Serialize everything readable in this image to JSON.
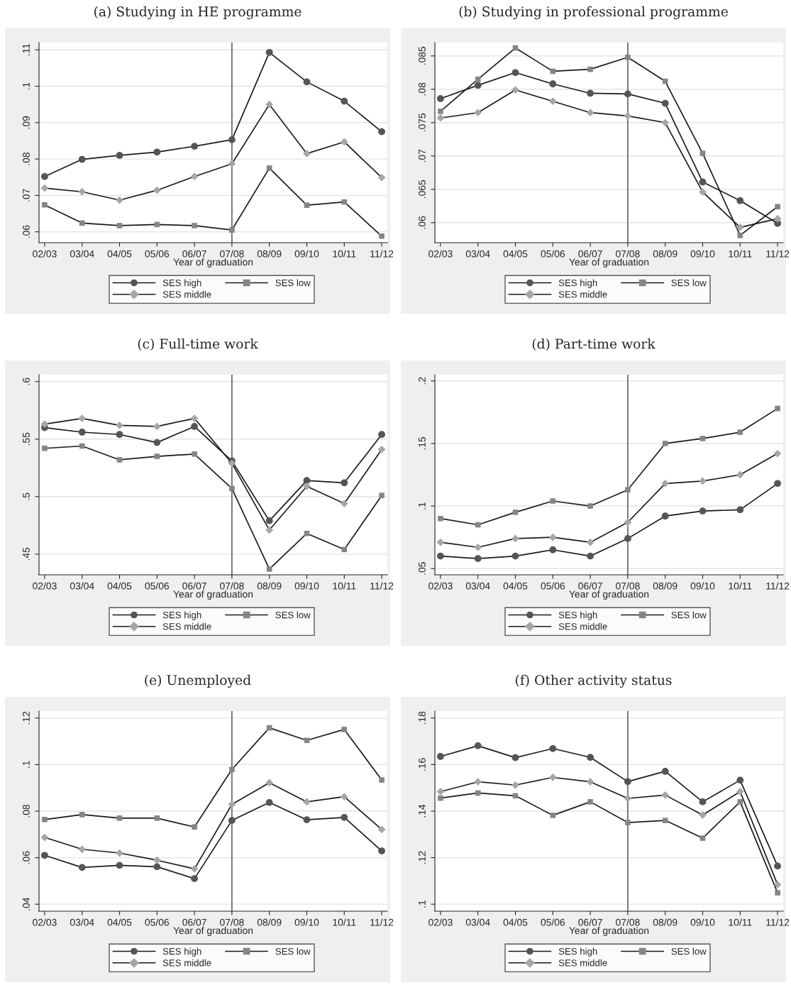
{
  "chart_data": [
    {
      "type": "line",
      "title": "(a) Studying in HE programme",
      "xlabel": "Year of graduation",
      "categories": [
        "02/03",
        "03/04",
        "04/05",
        "05/06",
        "06/07",
        "07/08",
        "08/09",
        "09/10",
        "10/11",
        "11/12"
      ],
      "series": [
        {
          "name": "SES high",
          "color": "#555555",
          "marker": "circle",
          "values": [
            0.0752,
            0.0799,
            0.081,
            0.0819,
            0.0835,
            0.0853,
            0.1093,
            0.1012,
            0.0959,
            0.0875
          ]
        },
        {
          "name": "SES middle",
          "color": "#a6a6a6",
          "marker": "diamond",
          "values": [
            0.072,
            0.071,
            0.0687,
            0.0714,
            0.0752,
            0.0787,
            0.095,
            0.0815,
            0.0847,
            0.0749
          ]
        },
        {
          "name": "SES low",
          "color": "#858585",
          "marker": "square",
          "values": [
            0.0674,
            0.0624,
            0.0617,
            0.062,
            0.0617,
            0.0605,
            0.0775,
            0.0673,
            0.0682,
            0.0588
          ]
        }
      ],
      "ylim": [
        0.057,
        0.112
      ],
      "yticks": [
        {
          "value": 0.06,
          "label": ".06"
        },
        {
          "value": 0.07,
          "label": ".07"
        },
        {
          "value": 0.08,
          "label": ".08"
        },
        {
          "value": 0.09,
          "label": ".09"
        },
        {
          "value": 0.1,
          "label": ".1"
        },
        {
          "value": 0.11,
          "label": ".11"
        }
      ],
      "ref_lines": [
        {
          "axis": "x",
          "value": "07/08",
          "color": "#6e6e6e"
        }
      ],
      "grid": "y",
      "legend": "bottom",
      "line_style": "solid"
    },
    {
      "type": "line",
      "title": "(b) Studying in professional programme",
      "xlabel": "Year of graduation",
      "categories": [
        "02/03",
        "03/04",
        "04/05",
        "05/06",
        "06/07",
        "07/08",
        "08/09",
        "09/10",
        "10/11",
        "11/12"
      ],
      "series": [
        {
          "name": "SES high",
          "color": "#555555",
          "marker": "circle",
          "values": [
            0.0786,
            0.0806,
            0.0825,
            0.0808,
            0.0794,
            0.0793,
            0.0779,
            0.0661,
            0.0633,
            0.0599
          ]
        },
        {
          "name": "SES middle",
          "color": "#a6a6a6",
          "marker": "diamond",
          "values": [
            0.0757,
            0.0765,
            0.0799,
            0.0782,
            0.0765,
            0.076,
            0.075,
            0.0646,
            0.0593,
            0.0606
          ]
        },
        {
          "name": "SES low",
          "color": "#858585",
          "marker": "square",
          "values": [
            0.0767,
            0.0815,
            0.0862,
            0.0827,
            0.083,
            0.0848,
            0.0812,
            0.0704,
            0.0581,
            0.0624
          ]
        }
      ],
      "ylim": [
        0.057,
        0.087
      ],
      "yticks": [
        {
          "value": 0.06,
          "label": ".06"
        },
        {
          "value": 0.065,
          "label": ".065"
        },
        {
          "value": 0.07,
          "label": ".07"
        },
        {
          "value": 0.075,
          "label": ".075"
        },
        {
          "value": 0.08,
          "label": ".08"
        },
        {
          "value": 0.085,
          "label": ".085"
        }
      ],
      "ref_lines": [
        {
          "axis": "x",
          "value": "07/08",
          "color": "#6e6e6e"
        }
      ],
      "grid": "y",
      "legend": "bottom",
      "line_style": "solid"
    },
    {
      "type": "line",
      "title": "(c) Full-time work",
      "xlabel": "Year of graduation",
      "categories": [
        "02/03",
        "03/04",
        "04/05",
        "05/06",
        "06/07",
        "07/08",
        "08/09",
        "09/10",
        "10/11",
        "11/12"
      ],
      "series": [
        {
          "name": "SES high",
          "color": "#555555",
          "marker": "circle",
          "values": [
            0.56,
            0.556,
            0.554,
            0.547,
            0.561,
            0.531,
            0.479,
            0.514,
            0.512,
            0.554
          ]
        },
        {
          "name": "SES middle",
          "color": "#a6a6a6",
          "marker": "diamond",
          "values": [
            0.563,
            0.568,
            0.562,
            0.561,
            0.568,
            0.529,
            0.471,
            0.509,
            0.494,
            0.541
          ]
        },
        {
          "name": "SES low",
          "color": "#858585",
          "marker": "square",
          "values": [
            0.542,
            0.544,
            0.532,
            0.535,
            0.537,
            0.507,
            0.437,
            0.468,
            0.454,
            0.501
          ]
        }
      ],
      "ylim": [
        0.432,
        0.606
      ],
      "yticks": [
        {
          "value": 0.45,
          "label": ".45"
        },
        {
          "value": 0.5,
          "label": ".5"
        },
        {
          "value": 0.55,
          "label": ".55"
        },
        {
          "value": 0.6,
          "label": ".6"
        }
      ],
      "ref_lines": [
        {
          "axis": "x",
          "value": "07/08",
          "color": "#6e6e6e"
        }
      ],
      "grid": "y",
      "legend": "bottom",
      "line_style": "solid"
    },
    {
      "type": "line",
      "title": "(d) Part-time work",
      "xlabel": "Year of graduation",
      "categories": [
        "02/03",
        "03/04",
        "04/05",
        "05/06",
        "06/07",
        "07/08",
        "08/09",
        "09/10",
        "10/11",
        "11/12"
      ],
      "series": [
        {
          "name": "SES high",
          "color": "#555555",
          "marker": "circle",
          "values": [
            0.06,
            0.058,
            0.06,
            0.065,
            0.06,
            0.074,
            0.092,
            0.096,
            0.097,
            0.118
          ]
        },
        {
          "name": "SES middle",
          "color": "#a6a6a6",
          "marker": "diamond",
          "values": [
            0.071,
            0.067,
            0.074,
            0.075,
            0.071,
            0.087,
            0.118,
            0.12,
            0.125,
            0.142
          ]
        },
        {
          "name": "SES low",
          "color": "#858585",
          "marker": "square",
          "values": [
            0.09,
            0.085,
            0.095,
            0.104,
            0.1,
            0.113,
            0.15,
            0.154,
            0.159,
            0.178
          ]
        }
      ],
      "ylim": [
        0.045,
        0.205
      ],
      "yticks": [
        {
          "value": 0.05,
          "label": ".05"
        },
        {
          "value": 0.1,
          "label": ".1"
        },
        {
          "value": 0.15,
          "label": ".15"
        },
        {
          "value": 0.2,
          "label": ".2"
        }
      ],
      "ref_lines": [
        {
          "axis": "x",
          "value": "07/08",
          "color": "#6e6e6e"
        }
      ],
      "grid": "y",
      "legend": "bottom",
      "line_style": "solid"
    },
    {
      "type": "line",
      "title": "(e) Unemployed",
      "xlabel": "Year of graduation",
      "categories": [
        "02/03",
        "03/04",
        "04/05",
        "05/06",
        "06/07",
        "07/08",
        "08/09",
        "09/10",
        "10/11",
        "11/12"
      ],
      "series": [
        {
          "name": "SES high",
          "color": "#555555",
          "marker": "circle",
          "values": [
            0.061,
            0.0558,
            0.0567,
            0.0561,
            0.051,
            0.076,
            0.0837,
            0.0763,
            0.0773,
            0.0629
          ]
        },
        {
          "name": "SES middle",
          "color": "#a6a6a6",
          "marker": "diamond",
          "values": [
            0.0687,
            0.0636,
            0.062,
            0.0589,
            0.0552,
            0.0829,
            0.0922,
            0.084,
            0.0862,
            0.0721
          ]
        },
        {
          "name": "SES low",
          "color": "#858585",
          "marker": "square",
          "values": [
            0.0764,
            0.0785,
            0.077,
            0.077,
            0.0732,
            0.0979,
            0.1158,
            0.1104,
            0.1151,
            0.0934
          ]
        }
      ],
      "ylim": [
        0.037,
        0.123
      ],
      "yticks": [
        {
          "value": 0.04,
          "label": ".04"
        },
        {
          "value": 0.06,
          "label": ".06"
        },
        {
          "value": 0.08,
          "label": ".08"
        },
        {
          "value": 0.1,
          "label": ".1"
        },
        {
          "value": 0.12,
          "label": ".12"
        }
      ],
      "ref_lines": [
        {
          "axis": "x",
          "value": "07/08",
          "color": "#6e6e6e"
        }
      ],
      "grid": "y",
      "legend": "bottom",
      "line_style": "solid"
    },
    {
      "type": "line",
      "title": "(f) Other activity status",
      "xlabel": "Year of graduation",
      "categories": [
        "02/03",
        "03/04",
        "04/05",
        "05/06",
        "06/07",
        "07/08",
        "08/09",
        "09/10",
        "10/11",
        "11/12"
      ],
      "series": [
        {
          "name": "SES high",
          "color": "#555555",
          "marker": "circle",
          "values": [
            0.1635,
            0.1681,
            0.163,
            0.1669,
            0.1631,
            0.1527,
            0.1571,
            0.144,
            0.1533,
            0.1164
          ]
        },
        {
          "name": "SES middle",
          "color": "#a6a6a6",
          "marker": "diamond",
          "values": [
            0.1484,
            0.1526,
            0.1512,
            0.1545,
            0.1526,
            0.1455,
            0.1469,
            0.1383,
            0.1484,
            0.1084
          ]
        },
        {
          "name": "SES low",
          "color": "#858585",
          "marker": "square",
          "values": [
            0.1456,
            0.1478,
            0.1466,
            0.1382,
            0.144,
            0.1351,
            0.136,
            0.1284,
            0.144,
            0.1049
          ]
        }
      ],
      "ylim": [
        0.097,
        0.183
      ],
      "yticks": [
        {
          "value": 0.1,
          "label": ".1"
        },
        {
          "value": 0.12,
          "label": ".12"
        },
        {
          "value": 0.14,
          "label": ".14"
        },
        {
          "value": 0.16,
          "label": ".16"
        },
        {
          "value": 0.18,
          "label": ".18"
        }
      ],
      "ref_lines": [
        {
          "axis": "x",
          "value": "07/08",
          "color": "#6e6e6e"
        }
      ],
      "grid": "y",
      "legend": "bottom",
      "line_style": "solid"
    }
  ]
}
